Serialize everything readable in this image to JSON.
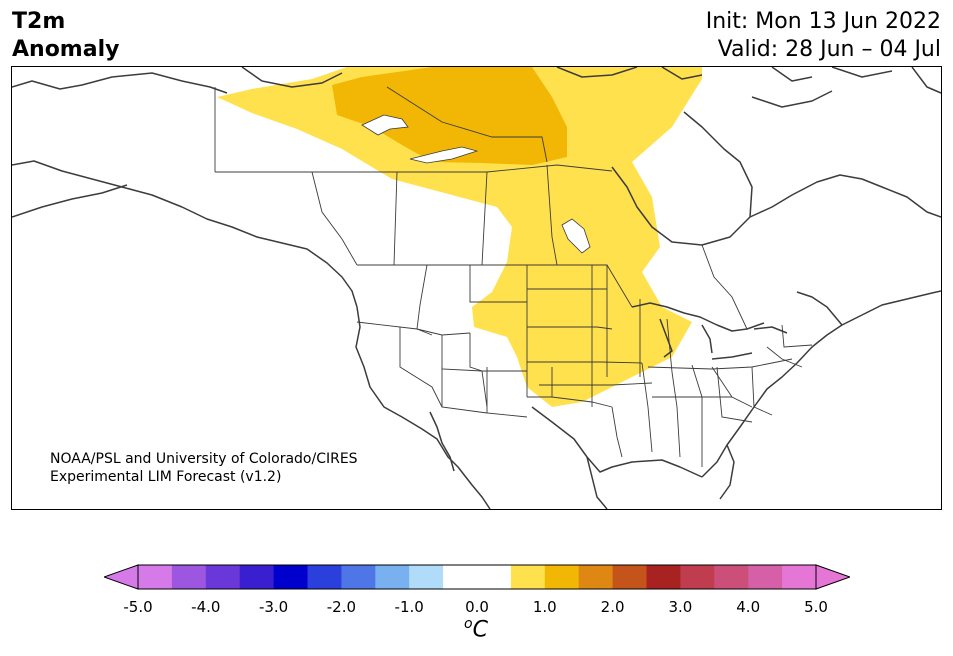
{
  "title": {
    "line1": "T2m",
    "line2": "Anomaly"
  },
  "dates": {
    "init": "Init: Mon 13 Jun 2022",
    "valid": "Valid: 28 Jun – 04 Jul"
  },
  "credit": {
    "line1": "NOAA/PSL and University of Colorado/CIRES",
    "line2": "Experimental LIM Forecast (v1.2)"
  },
  "colorbar": {
    "ticks": [
      "-5.0",
      "-4.0",
      "-3.0",
      "-2.0",
      "-1.0",
      "0.0",
      "1.0",
      "2.0",
      "3.0",
      "4.0",
      "5.0"
    ],
    "unit_superscript": "o",
    "unit_letter": "C",
    "colors": [
      "#d57ae8",
      "#9c56e0",
      "#6a38d8",
      "#3a1fd0",
      "#0000cc",
      "#2a3fdc",
      "#4f76e6",
      "#78b0f0",
      "#b0dcfa",
      "#ffffff",
      "#ffffff",
      "#ffe14d",
      "#f2b705",
      "#de8712",
      "#c4541a",
      "#a82222",
      "#c03c4f",
      "#cc4f7a",
      "#d660a8",
      "#e576d6"
    ],
    "under_color": "#d57ae8",
    "over_color": "#e576d6"
  },
  "map": {
    "projection": "Lambert conformal, North America",
    "anomaly_colors": {
      "light": "#ffe14d",
      "medium": "#f2b705"
    }
  }
}
